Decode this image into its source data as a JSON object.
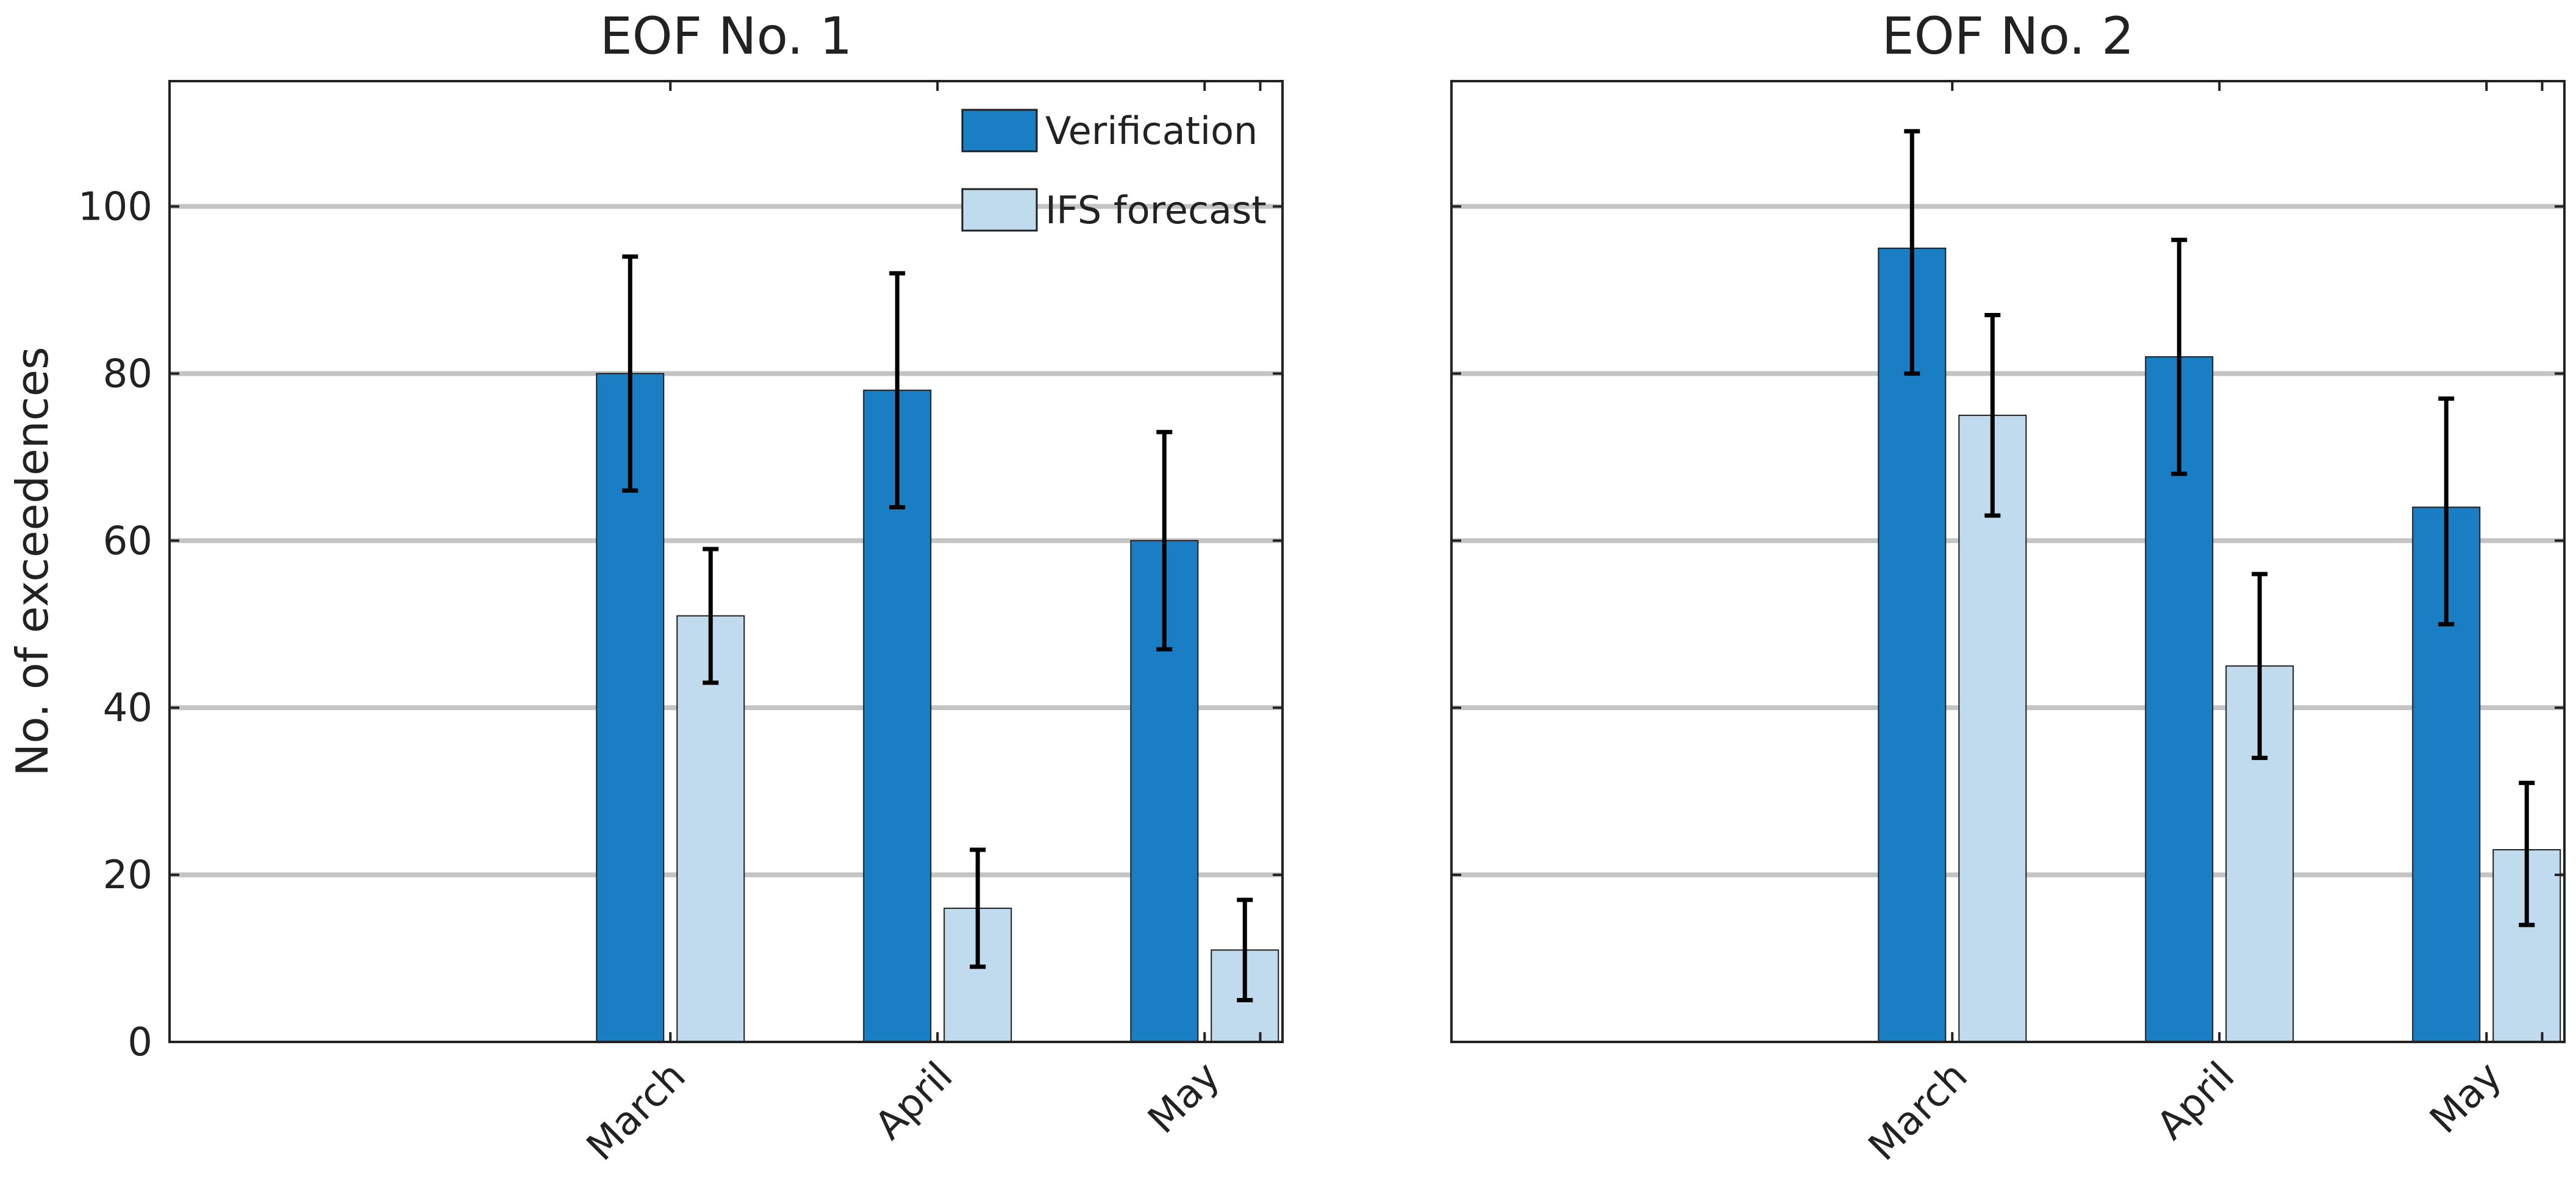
{
  "chart_data": [
    {
      "type": "bar",
      "title": "EOF No. 1",
      "ylabel": "No. of exceedences",
      "xlabel": "",
      "categories": [
        "March",
        "April",
        "May"
      ],
      "ylim": [
        0,
        115
      ],
      "yticks": [
        0,
        20,
        40,
        60,
        80,
        100
      ],
      "grid": "horizontal",
      "legend": "top-right",
      "series": [
        {
          "name": "Verification",
          "color": "#1a7ec4",
          "values": [
            80,
            78,
            60
          ],
          "err_low": [
            66,
            64,
            47
          ],
          "err_high": [
            94,
            92,
            73
          ]
        },
        {
          "name": "IFS forecast",
          "color": "#c0dbee",
          "values": [
            51,
            16,
            11
          ],
          "err_low": [
            43,
            9,
            5
          ],
          "err_high": [
            59,
            23,
            17
          ]
        }
      ]
    },
    {
      "type": "bar",
      "title": "EOF No. 2",
      "ylabel": "",
      "xlabel": "",
      "categories": [
        "March",
        "April",
        "May"
      ],
      "ylim": [
        0,
        115
      ],
      "yticks": [
        0,
        20,
        40,
        60,
        80,
        100
      ],
      "grid": "horizontal",
      "legend": "none",
      "series": [
        {
          "name": "Verification",
          "color": "#1a7ec4",
          "values": [
            95,
            82,
            64
          ],
          "err_low": [
            80,
            68,
            50
          ],
          "err_high": [
            109,
            96,
            77
          ]
        },
        {
          "name": "IFS forecast",
          "color": "#c0dbee",
          "values": [
            75,
            45,
            23
          ],
          "err_low": [
            63,
            34,
            14
          ],
          "err_high": [
            87,
            56,
            31
          ]
        }
      ]
    }
  ]
}
